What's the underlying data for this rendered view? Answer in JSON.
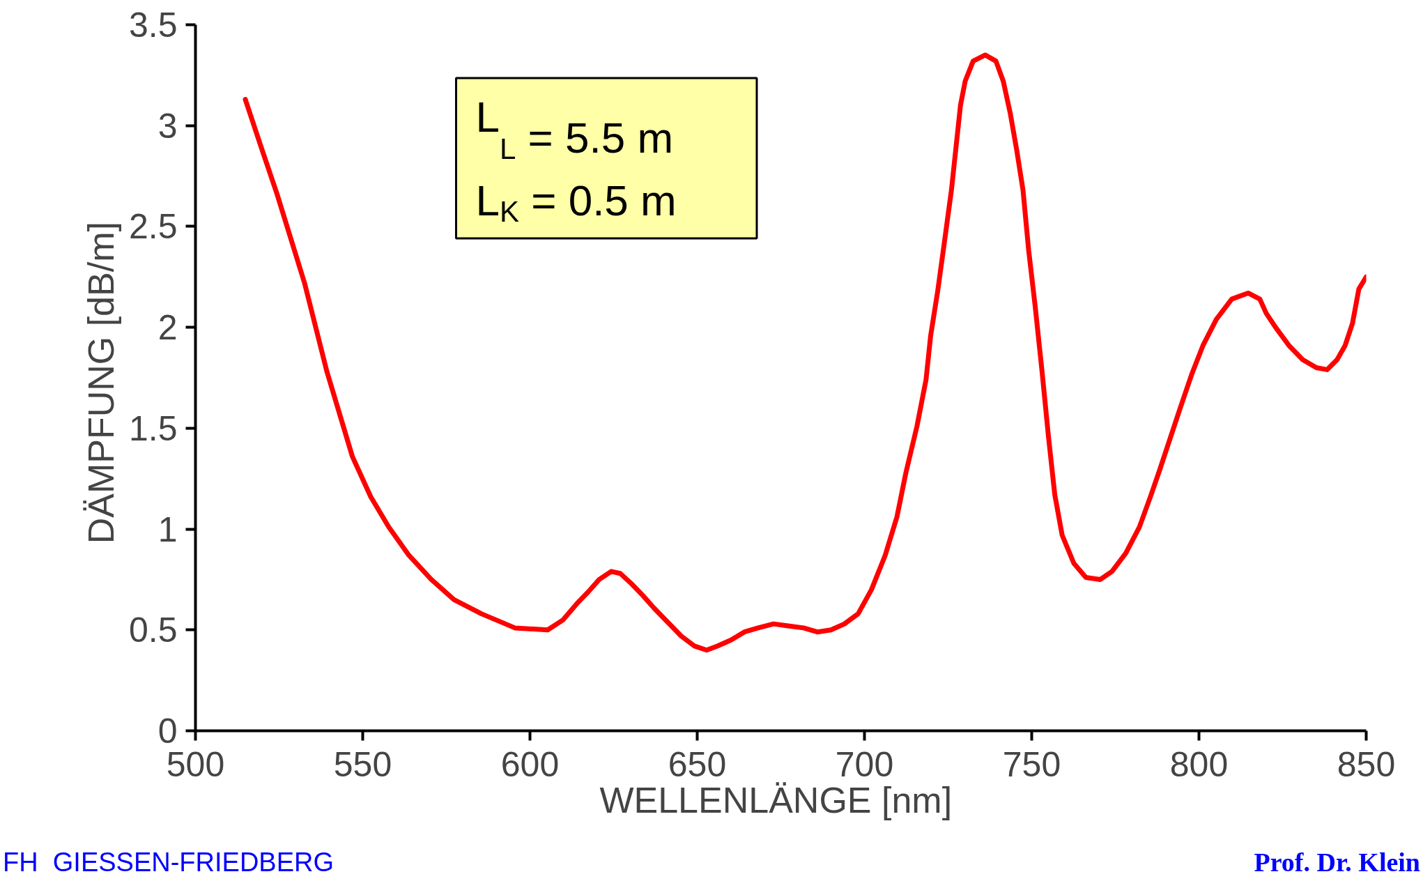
{
  "chart_data": {
    "type": "line",
    "xlabel": "WELLENLÄNGE  [nm]",
    "ylabel": "DÄMPFUNG  [dB/m]",
    "xlim": [
      500,
      850
    ],
    "xticks": [
      500,
      550,
      600,
      650,
      700,
      750,
      800,
      850
    ],
    "ylim": [
      0,
      3.5
    ],
    "yticks": [
      0,
      0.5,
      1,
      1.5,
      2,
      2.5,
      3,
      3.5
    ],
    "grid": false,
    "marker": "none",
    "line_style": "solid",
    "series": [
      {
        "color": "#ff0000",
        "x": [
          514.9,
          519.5,
          524.4,
          532.6,
          539.3,
          546.9,
          552.4,
          557.8,
          563.8,
          570.5,
          577.3,
          585.5,
          595.5,
          605.3,
          609.9,
          614.0,
          617.5,
          620.7,
          624.3,
          627.0,
          630.3,
          633.8,
          637.0,
          641.1,
          645.2,
          649.2,
          652.8,
          656.0,
          660.1,
          664.1,
          668.2,
          672.8,
          677.2,
          681.8,
          685.9,
          690.0,
          694.0,
          698.1,
          702.1,
          706.2,
          709.7,
          712.4,
          715.7,
          718.4,
          719.8,
          721.9,
          723.8,
          726.0,
          728.7,
          730.1,
          732.5,
          736.1,
          739.3,
          741.5,
          743.6,
          745.5,
          747.4,
          749.1,
          751.0,
          753.1,
          755.0,
          756.9,
          759.1,
          762.6,
          766.2,
          770.5,
          774.0,
          778.1,
          782.2,
          785.7,
          788.4,
          791.6,
          794.4,
          797.9,
          801.2,
          805.2,
          809.8,
          814.7,
          818.2,
          820.1,
          822.9,
          826.9,
          831.0,
          835.1,
          838.3,
          841.3,
          843.7,
          845.9,
          847.8,
          850.0
        ],
        "values": [
          3.13,
          2.9,
          2.66,
          2.22,
          1.78,
          1.36,
          1.16,
          1.01,
          0.87,
          0.75,
          0.65,
          0.58,
          0.51,
          0.5,
          0.55,
          0.63,
          0.69,
          0.75,
          0.79,
          0.78,
          0.73,
          0.67,
          0.61,
          0.54,
          0.47,
          0.42,
          0.4,
          0.42,
          0.45,
          0.49,
          0.51,
          0.53,
          0.52,
          0.51,
          0.49,
          0.5,
          0.53,
          0.58,
          0.7,
          0.87,
          1.06,
          1.28,
          1.51,
          1.74,
          1.96,
          2.18,
          2.41,
          2.68,
          3.1,
          3.22,
          3.32,
          3.35,
          3.32,
          3.22,
          3.06,
          2.88,
          2.68,
          2.38,
          2.11,
          1.78,
          1.46,
          1.17,
          0.97,
          0.83,
          0.76,
          0.75,
          0.79,
          0.88,
          1.01,
          1.17,
          1.3,
          1.46,
          1.6,
          1.77,
          1.91,
          2.04,
          2.14,
          2.17,
          2.14,
          2.07,
          2.0,
          1.91,
          1.84,
          1.8,
          1.79,
          1.84,
          1.91,
          2.02,
          2.19,
          2.25
        ]
      }
    ],
    "annotations": [
      "L$_{L}$ = 5.5 m\nL$_{K}$ = 0.5 m",
      "FH  GIESSEN-FRIEDBERG",
      "Prof. Dr. Klein"
    ]
  }
}
